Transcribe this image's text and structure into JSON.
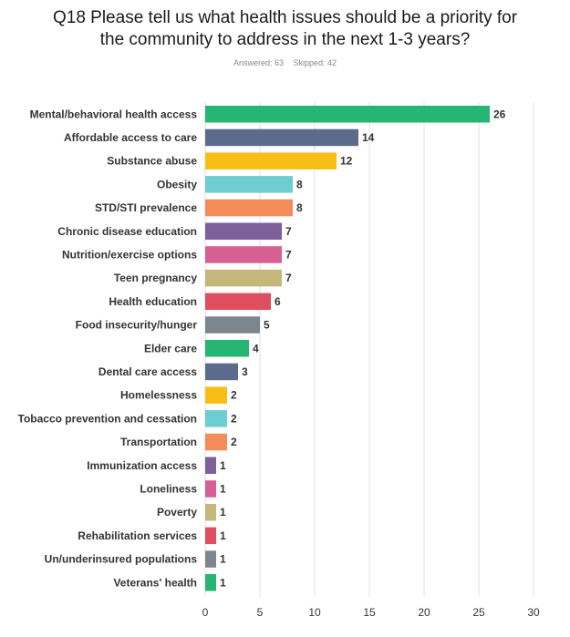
{
  "title_line1": "Q18  Please tell us what health issues should be a priority for",
  "title_line2": "the community to address in the next 1-3 years?",
  "answered": "Answered: 63",
  "skipped": "Skipped: 42",
  "colors": [
    "#26b572",
    "#5a6b8c",
    "#f7be16",
    "#6dcdd0",
    "#f48c5a",
    "#7d5f9c",
    "#d65f93",
    "#c4b77c",
    "#df4e5e",
    "#7d868d"
  ],
  "chart_data": {
    "type": "bar",
    "orientation": "horizontal",
    "categories": [
      "Mental/behavioral health access",
      "Affordable access to care",
      "Substance abuse",
      "Obesity",
      "STD/STI prevalence",
      "Chronic disease education",
      "Nutrition/exercise options",
      "Teen pregnancy",
      "Health education",
      "Food insecurity/hunger",
      "Elder care",
      "Dental care access",
      "Homelessness",
      "Tobacco prevention and cessation",
      "Transportation",
      "Immunization access",
      "Loneliness",
      "Poverty",
      "Rehabilitation services",
      "Un/underinsured populations",
      "Veterans' health"
    ],
    "values": [
      26,
      14,
      12,
      8,
      8,
      7,
      7,
      7,
      6,
      5,
      4,
      3,
      2,
      2,
      2,
      1,
      1,
      1,
      1,
      1,
      1
    ],
    "xlim": [
      0,
      30
    ],
    "xticks": [
      0,
      5,
      10,
      15,
      20,
      25,
      30
    ],
    "grid": true
  }
}
